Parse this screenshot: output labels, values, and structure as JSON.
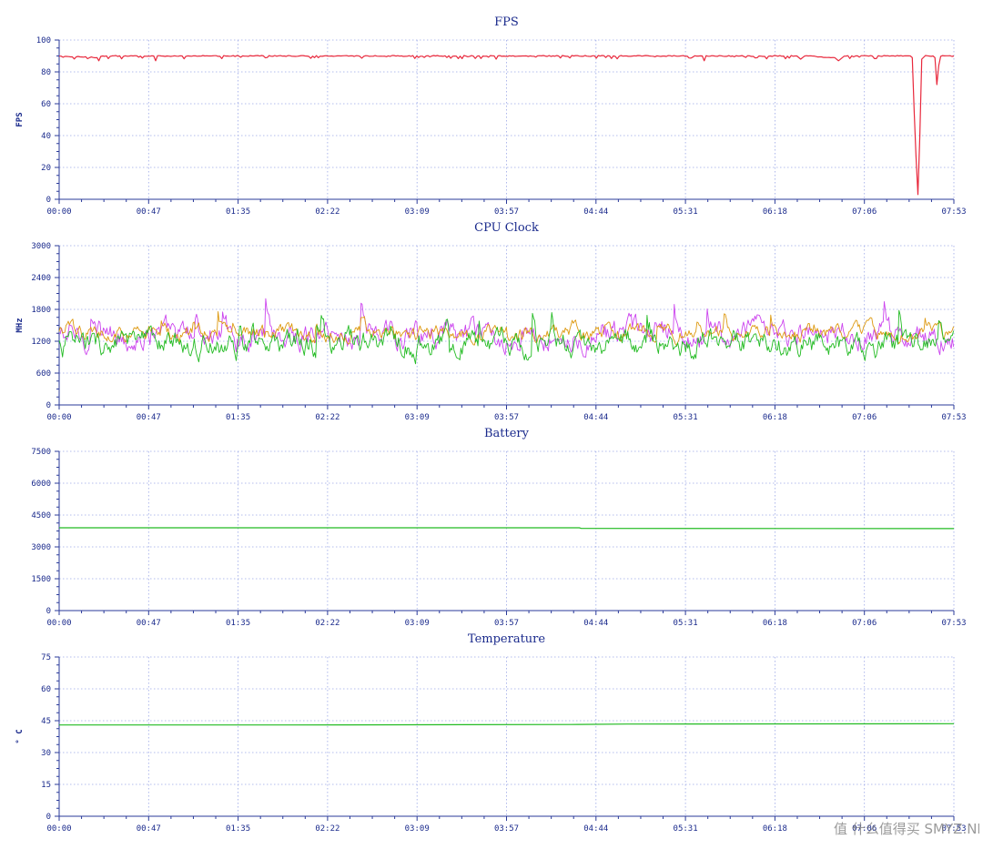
{
  "watermark": "值 什么值得买 SMYZ.NET",
  "time_ticks": [
    "00:00",
    "00:47",
    "01:35",
    "02:22",
    "03:09",
    "03:57",
    "04:44",
    "05:31",
    "06:18",
    "07:06",
    "07:53"
  ],
  "chart_data": [
    {
      "type": "line",
      "id": "fps",
      "title": "FPS",
      "ylabel": "FPS",
      "ylim": [
        0,
        100
      ],
      "yticks": [
        0,
        20,
        40,
        60,
        80,
        100
      ],
      "x_range_seconds": [
        0,
        473
      ],
      "grid": true,
      "series": [
        {
          "color": "#e8283c",
          "baseline": 90,
          "noise": 1.2,
          "points": [
            [
              0,
              90
            ],
            [
              20,
              89
            ],
            [
              21,
              87
            ],
            [
              22,
              90
            ],
            [
              50,
              90
            ],
            [
              51,
              87
            ],
            [
              52,
              90
            ],
            [
              230,
              90
            ],
            [
              231,
              88
            ],
            [
              232,
              90
            ],
            [
              340,
              90
            ],
            [
              341,
              87
            ],
            [
              342,
              90
            ],
            [
              390,
              90
            ],
            [
              392,
              88
            ],
            [
              394,
              90
            ],
            [
              410,
              89
            ],
            [
              412,
              87
            ],
            [
              415,
              90
            ],
            [
              450,
              90
            ],
            [
              451,
              89
            ],
            [
              452,
              55
            ],
            [
              453,
              27
            ],
            [
              454,
              3
            ],
            [
              455,
              40
            ],
            [
              456,
              88
            ],
            [
              458,
              90
            ],
            [
              462,
              90
            ],
            [
              463,
              89
            ],
            [
              464,
              72
            ],
            [
              465,
              84
            ],
            [
              466,
              90
            ],
            [
              473,
              90
            ]
          ]
        }
      ]
    },
    {
      "type": "line",
      "id": "cpu",
      "title": "CPU Clock",
      "ylabel": "MHz",
      "ylim": [
        0,
        3000
      ],
      "yticks": [
        0,
        600,
        1200,
        1800,
        2400,
        3000
      ],
      "x_range_seconds": [
        0,
        473
      ],
      "grid": true,
      "series": [
        {
          "color": "#cc44ee",
          "mean": 1300,
          "spread": 380,
          "min": 650,
          "max": 2350
        },
        {
          "color": "#dd9910",
          "mean": 1350,
          "spread": 220,
          "min": 800,
          "max": 2350
        },
        {
          "color": "#22bb22",
          "mean": 1150,
          "spread": 360,
          "min": 560,
          "max": 1800
        }
      ]
    },
    {
      "type": "line",
      "id": "battery",
      "title": "Battery",
      "ylabel": "",
      "ylim": [
        0,
        7500
      ],
      "yticks": [
        0,
        1500,
        3000,
        4500,
        6000,
        7500
      ],
      "x_range_seconds": [
        0,
        473
      ],
      "grid": true,
      "series": [
        {
          "color": "#22bb22",
          "points": [
            [
              0,
              3900
            ],
            [
              275,
              3900
            ],
            [
              276,
              3870
            ],
            [
              473,
              3860
            ]
          ]
        }
      ]
    },
    {
      "type": "line",
      "id": "temperature",
      "title": "Temperature",
      "ylabel": "° C",
      "ylim": [
        0,
        75
      ],
      "yticks": [
        0,
        15,
        30,
        45,
        60,
        75
      ],
      "x_range_seconds": [
        0,
        473
      ],
      "grid": true,
      "series": [
        {
          "color": "#22bb22",
          "points": [
            [
              0,
              43
            ],
            [
              120,
              43
            ],
            [
              270,
              43.2
            ],
            [
              300,
              43.4
            ],
            [
              400,
              43.5
            ],
            [
              473,
              43.6
            ]
          ]
        }
      ]
    }
  ]
}
